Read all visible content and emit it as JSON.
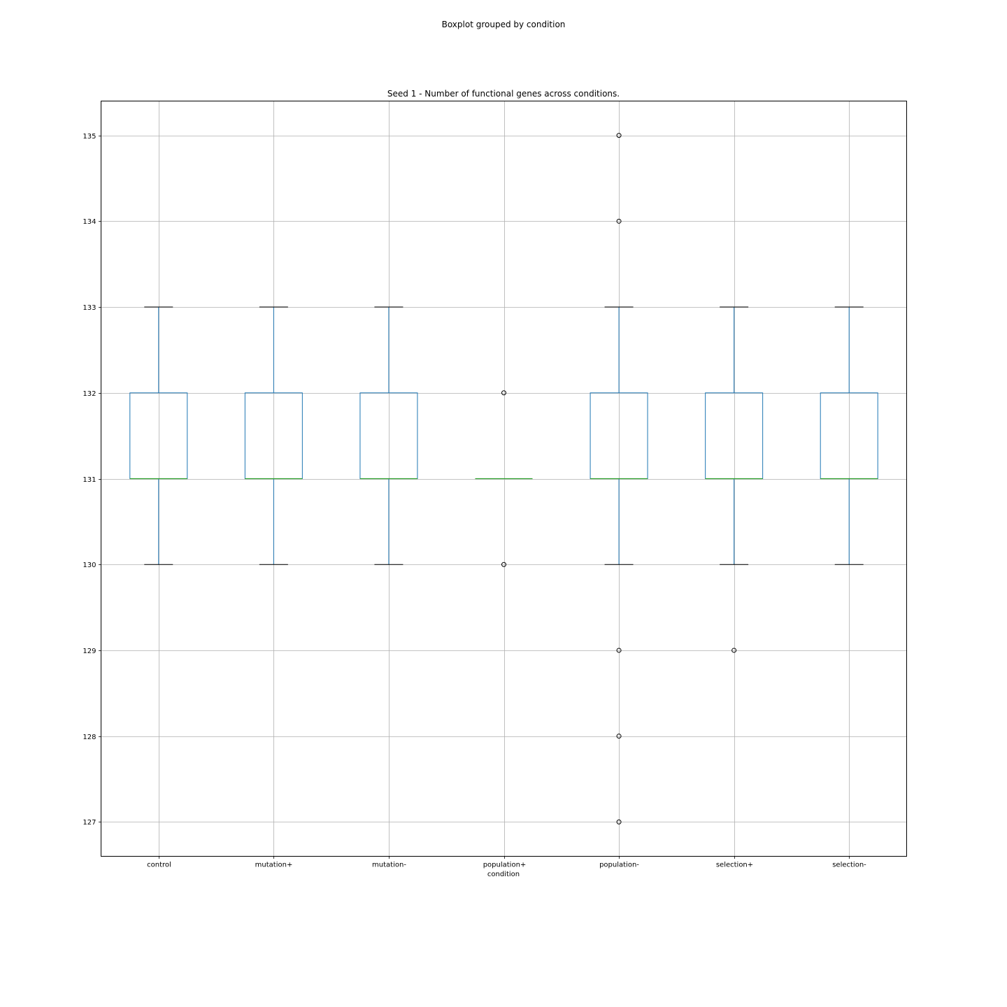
{
  "figure_title": "Boxplot grouped by condition",
  "chart_data": {
    "type": "box",
    "title": "Seed 1 - Number of functional genes across conditions.",
    "xlabel": "condition",
    "ylabel": "",
    "categories": [
      "control",
      "mutation+",
      "mutation-",
      "population+",
      "population-",
      "selection+",
      "selection-"
    ],
    "ylim": [
      126.6,
      135.4
    ],
    "yticks": [
      127,
      128,
      129,
      130,
      131,
      132,
      133,
      134,
      135
    ],
    "grid": true,
    "boxes": [
      {
        "category": "control",
        "whisker_low": 130,
        "q1": 131,
        "median": 131,
        "q3": 132,
        "whisker_high": 133,
        "outliers": []
      },
      {
        "category": "mutation+",
        "whisker_low": 130,
        "q1": 131,
        "median": 131,
        "q3": 132,
        "whisker_high": 133,
        "outliers": []
      },
      {
        "category": "mutation-",
        "whisker_low": 130,
        "q1": 131,
        "median": 131,
        "q3": 132,
        "whisker_high": 133,
        "outliers": []
      },
      {
        "category": "population+",
        "whisker_low": 131,
        "q1": 131,
        "median": 131,
        "q3": 131,
        "whisker_high": 131,
        "outliers": [
          132,
          130
        ]
      },
      {
        "category": "population-",
        "whisker_low": 130,
        "q1": 131,
        "median": 131,
        "q3": 132,
        "whisker_high": 133,
        "outliers": [
          135,
          134,
          129,
          128,
          127
        ]
      },
      {
        "category": "selection+",
        "whisker_low": 130,
        "q1": 131,
        "median": 131,
        "q3": 132,
        "whisker_high": 133,
        "outliers": [
          129
        ]
      },
      {
        "category": "selection-",
        "whisker_low": 130,
        "q1": 131,
        "median": 131,
        "q3": 132,
        "whisker_high": 133,
        "outliers": []
      }
    ],
    "colors": {
      "box": "#1f77b4",
      "median": "#2ca02c",
      "caps": "#000000",
      "grid": "#b0b0b0",
      "outlier_edge": "#000000"
    }
  }
}
